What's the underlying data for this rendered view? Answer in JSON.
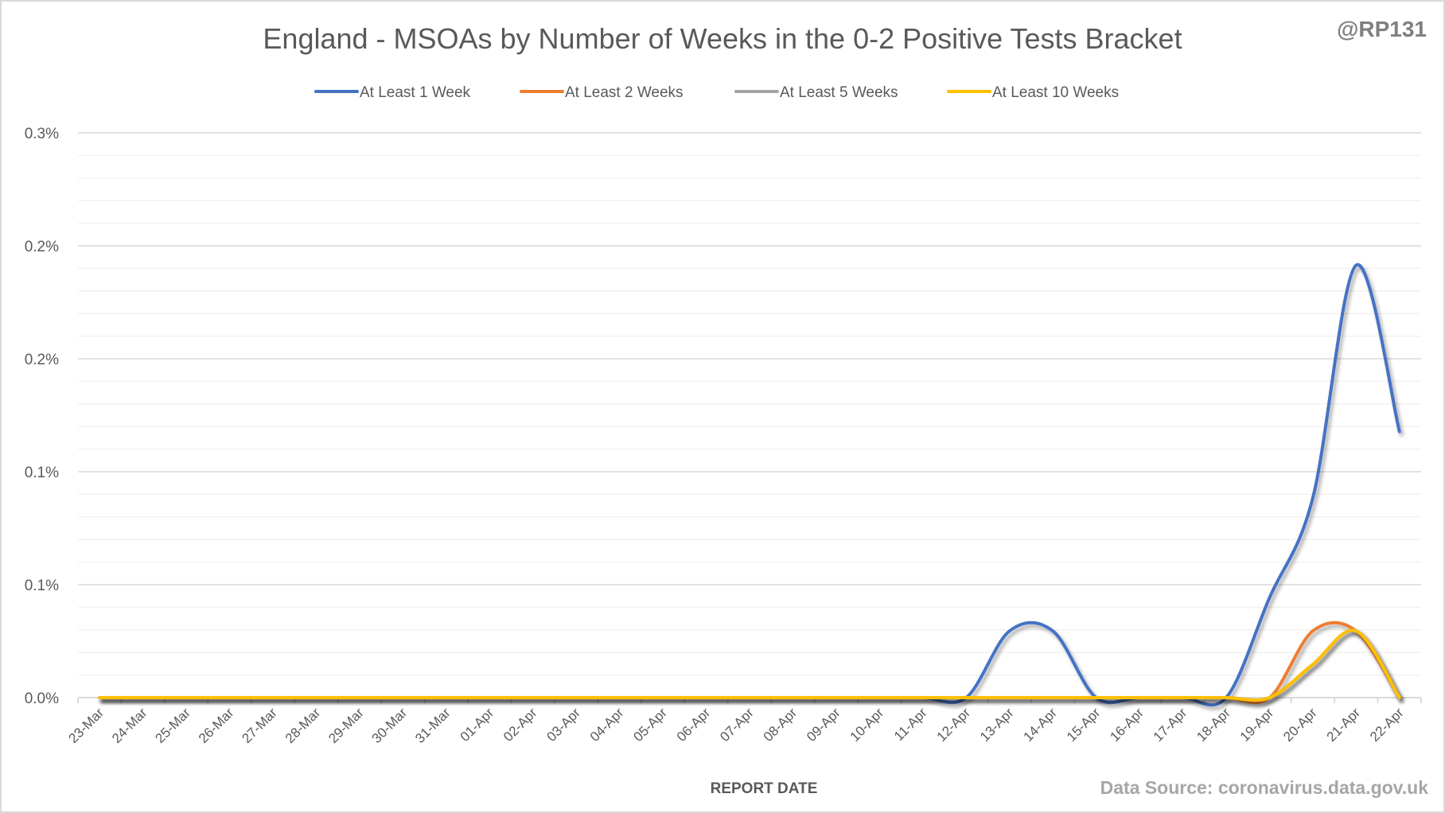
{
  "chart_data": {
    "type": "line",
    "title": "England - MSOAs by Number of Weeks in the 0-2 Positive Tests Bracket",
    "credit": "@RP131",
    "xlabel": "REPORT DATE",
    "ylabel": "",
    "source_note": "Data Source: coronavirus.data.gov.uk",
    "smoothed": true,
    "grid": true,
    "legend_position": "top",
    "ylim": [
      0,
      0.25
    ],
    "y_major_step": 0.05,
    "y_minor_step": 0.01,
    "y_tick_values": [
      0.0,
      0.05,
      0.1,
      0.15,
      0.2,
      0.25
    ],
    "y_tick_labels": [
      "0.0%",
      "0.1%",
      "0.1%",
      "0.2%",
      "0.2%",
      "0.3%"
    ],
    "categories": [
      "23-Mar",
      "24-Mar",
      "25-Mar",
      "26-Mar",
      "27-Mar",
      "28-Mar",
      "29-Mar",
      "30-Mar",
      "31-Mar",
      "01-Apr",
      "02-Apr",
      "03-Apr",
      "04-Apr",
      "05-Apr",
      "06-Apr",
      "07-Apr",
      "08-Apr",
      "09-Apr",
      "10-Apr",
      "11-Apr",
      "12-Apr",
      "13-Apr",
      "14-Apr",
      "15-Apr",
      "16-Apr",
      "17-Apr",
      "18-Apr",
      "19-Apr",
      "20-Apr",
      "21-Apr",
      "22-Apr"
    ],
    "series": [
      {
        "name": "At Least 1 Week",
        "color": "#4472c4",
        "values": [
          0,
          0,
          0,
          0,
          0,
          0,
          0,
          0,
          0,
          0,
          0,
          0,
          0,
          0,
          0,
          0,
          0,
          0,
          0,
          0,
          0,
          0.0295,
          0.0295,
          0,
          0,
          0,
          0,
          0.0442,
          0.0884,
          0.1914,
          0.1178
        ]
      },
      {
        "name": "At Least 2 Weeks",
        "color": "#ed7d31",
        "values": [
          0,
          0,
          0,
          0,
          0,
          0,
          0,
          0,
          0,
          0,
          0,
          0,
          0,
          0,
          0,
          0,
          0,
          0,
          0,
          0,
          0,
          0,
          0,
          0,
          0,
          0,
          0,
          0,
          0.0295,
          0.0295,
          0
        ]
      },
      {
        "name": "At Least 5 Weeks",
        "color": "#a5a5a5",
        "values": [
          0,
          0,
          0,
          0,
          0,
          0,
          0,
          0,
          0,
          0,
          0,
          0,
          0,
          0,
          0,
          0,
          0,
          0,
          0,
          0,
          0,
          0,
          0,
          0,
          0,
          0,
          0,
          0,
          0.0147,
          0.0295,
          0
        ]
      },
      {
        "name": "At Least 10 Weeks",
        "color": "#ffc000",
        "values": [
          0,
          0,
          0,
          0,
          0,
          0,
          0,
          0,
          0,
          0,
          0,
          0,
          0,
          0,
          0,
          0,
          0,
          0,
          0,
          0,
          0,
          0,
          0,
          0,
          0,
          0,
          0,
          0,
          0.0147,
          0.0295,
          0
        ]
      }
    ]
  }
}
